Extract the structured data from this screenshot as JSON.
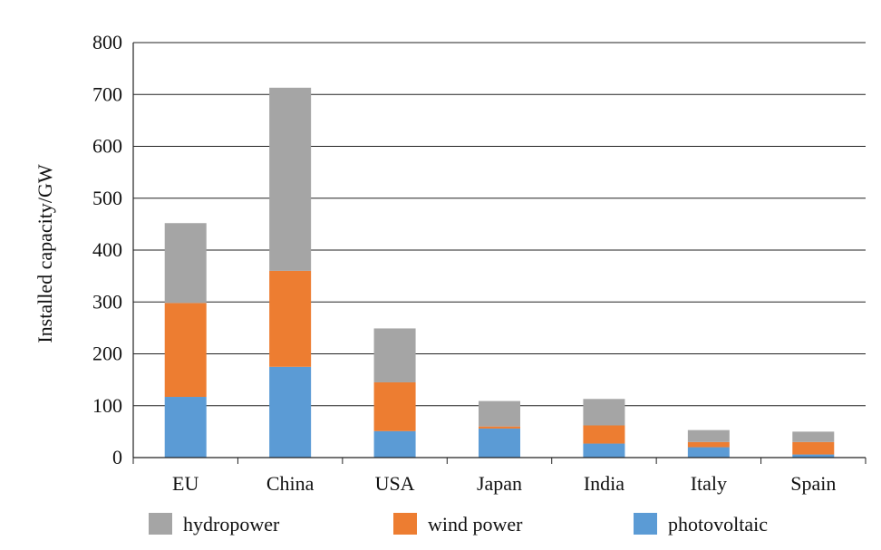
{
  "chart_data": {
    "type": "bar",
    "stacked": true,
    "title": "",
    "xlabel": "",
    "ylabel": "Installed capacity/GW",
    "ylim": [
      0,
      800
    ],
    "yticks": [
      0,
      100,
      200,
      300,
      400,
      500,
      600,
      700,
      800
    ],
    "grid": true,
    "legend_position": "bottom",
    "categories": [
      "EU",
      "China",
      "USA",
      "Japan",
      "India",
      "Italy",
      "Spain"
    ],
    "series": [
      {
        "name": "photovoltaic",
        "color": "#5b9bd5",
        "values": [
          117,
          175,
          51,
          56,
          27,
          20,
          6
        ]
      },
      {
        "name": "wind power",
        "color": "#ed7d31",
        "values": [
          181,
          185,
          94,
          4,
          35,
          10,
          24
        ]
      },
      {
        "name": "hydropower",
        "color": "#a5a5a5",
        "values": [
          154,
          353,
          104,
          49,
          51,
          23,
          20
        ]
      }
    ],
    "legend_order": [
      "hydropower",
      "wind power",
      "photovoltaic"
    ]
  }
}
